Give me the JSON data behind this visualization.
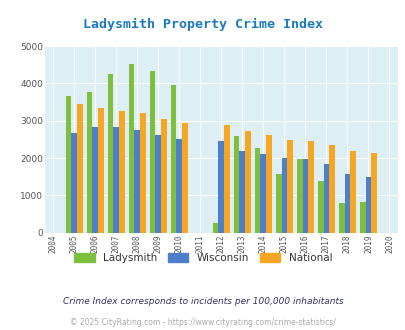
{
  "title": "Ladysmith Property Crime Index",
  "title_color": "#1a7abf",
  "years": [
    2004,
    2005,
    2006,
    2007,
    2008,
    2009,
    2010,
    2011,
    2012,
    2013,
    2014,
    2015,
    2016,
    2017,
    2018,
    2019,
    2020
  ],
  "ladysmith": [
    null,
    3670,
    3780,
    4250,
    4520,
    4330,
    3970,
    null,
    270,
    2600,
    2260,
    1560,
    1980,
    1390,
    790,
    810,
    null
  ],
  "wisconsin": [
    null,
    2660,
    2820,
    2820,
    2760,
    2610,
    2520,
    null,
    2460,
    2200,
    2110,
    1990,
    1970,
    1830,
    1560,
    1490,
    null
  ],
  "national": [
    null,
    3450,
    3350,
    3250,
    3210,
    3040,
    2950,
    null,
    2880,
    2730,
    2620,
    2490,
    2450,
    2360,
    2200,
    2140,
    null
  ],
  "ladysmith_color": "#7fbf3f",
  "wisconsin_color": "#4f7fc8",
  "national_color": "#f5a623",
  "bg_color": "#ffffff",
  "plot_bg_color": "#deeef5",
  "ylim": [
    0,
    5000
  ],
  "ylabel_ticks": [
    0,
    1000,
    2000,
    3000,
    4000,
    5000
  ],
  "footnote1": "Crime Index corresponds to incidents per 100,000 inhabitants",
  "footnote2": "© 2025 CityRating.com - https://www.cityrating.com/crime-statistics/",
  "legend_labels": [
    "Ladysmith",
    "Wisconsin",
    "National"
  ]
}
